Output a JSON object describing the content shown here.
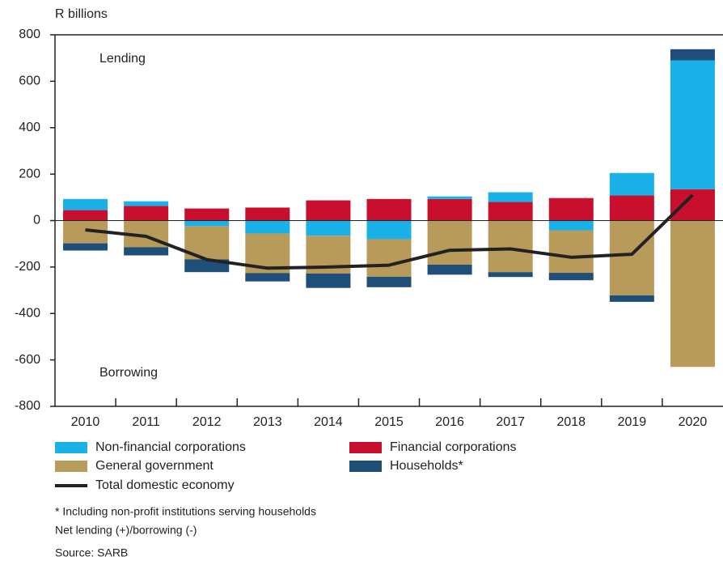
{
  "chart_data": {
    "type": "bar",
    "stacked": true,
    "y_axis_label": "R billions",
    "annotations": [
      "Lending",
      "Borrowing"
    ],
    "categories": [
      "2010",
      "2011",
      "2012",
      "2013",
      "2014",
      "2015",
      "2016",
      "2017",
      "2018",
      "2019",
      "2020"
    ],
    "series": [
      {
        "name": "Financial corporations",
        "color": "#c8102e",
        "values": [
          45,
          63,
          52,
          56,
          87,
          93,
          93,
          80,
          97,
          108,
          135
        ]
      },
      {
        "name": "Non-financial corporations",
        "color": "#1ab0e8",
        "values": [
          48,
          20,
          -24,
          -56,
          -65,
          -80,
          11,
          42,
          -42,
          97,
          555
        ]
      },
      {
        "name": "General government",
        "color": "#b89a5a",
        "values": [
          -98,
          -115,
          -143,
          -170,
          -163,
          -162,
          -190,
          -222,
          -183,
          -322,
          -630
        ]
      },
      {
        "name": "Households*",
        "color": "#1f4e79",
        "values": [
          -31,
          -35,
          -55,
          -36,
          -62,
          -45,
          -43,
          -21,
          -32,
          -28,
          48
        ]
      }
    ],
    "line_series": {
      "name": "Total domestic economy",
      "color": "#222222",
      "values": [
        -40,
        -68,
        -168,
        -205,
        -200,
        -192,
        -128,
        -122,
        -158,
        -145,
        110
      ]
    },
    "ylim": [
      -800,
      800
    ],
    "yticks": [
      -800,
      -600,
      -400,
      -200,
      0,
      200,
      400,
      600,
      800
    ],
    "notes": [
      "* Including non-profit institutions serving households",
      "Net lending (+)/borrowing (-)",
      "Source: SARB"
    ]
  }
}
